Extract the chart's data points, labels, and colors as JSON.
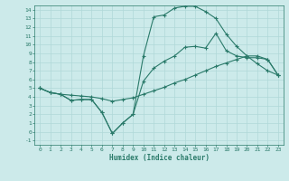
{
  "xlabel": "Humidex (Indice chaleur)",
  "bg_color": "#cceaea",
  "grid_color": "#b0d8d8",
  "line_color": "#2a7a6a",
  "xlim": [
    -0.5,
    23.5
  ],
  "ylim": [
    -1.5,
    14.5
  ],
  "xticks": [
    0,
    1,
    2,
    3,
    4,
    5,
    6,
    7,
    8,
    9,
    10,
    11,
    12,
    13,
    14,
    15,
    16,
    17,
    18,
    19,
    20,
    21,
    22,
    23
  ],
  "yticks": [
    -1,
    0,
    1,
    2,
    3,
    4,
    5,
    6,
    7,
    8,
    9,
    10,
    11,
    12,
    13,
    14
  ],
  "line1_x": [
    0,
    1,
    2,
    3,
    4,
    5,
    6,
    7,
    8,
    9,
    10,
    11,
    12,
    13,
    14,
    15,
    16,
    17,
    18,
    19,
    20,
    21,
    22,
    23
  ],
  "line1_y": [
    5.0,
    4.5,
    4.3,
    3.6,
    3.7,
    3.7,
    2.2,
    -0.2,
    1.0,
    2.0,
    8.7,
    13.2,
    13.4,
    14.2,
    14.4,
    14.4,
    13.8,
    13.0,
    11.2,
    9.8,
    8.7,
    8.7,
    8.3,
    6.5
  ],
  "line2_x": [
    0,
    1,
    2,
    3,
    4,
    5,
    6,
    7,
    8,
    9,
    10,
    11,
    12,
    13,
    14,
    15,
    16,
    17,
    18,
    19,
    20,
    21,
    22,
    23
  ],
  "line2_y": [
    5.0,
    4.5,
    4.3,
    3.6,
    3.7,
    3.7,
    2.2,
    -0.2,
    1.0,
    2.0,
    5.8,
    7.3,
    8.1,
    8.7,
    9.7,
    9.8,
    9.6,
    11.3,
    9.3,
    8.7,
    8.5,
    8.5,
    8.3,
    6.5
  ],
  "line3_x": [
    0,
    1,
    2,
    3,
    4,
    5,
    6,
    7,
    8,
    9,
    10,
    11,
    12,
    13,
    14,
    15,
    16,
    17,
    18,
    19,
    20,
    21,
    22,
    23
  ],
  "line3_y": [
    5.0,
    4.5,
    4.3,
    4.2,
    4.1,
    4.0,
    3.8,
    3.5,
    3.7,
    3.9,
    4.3,
    4.7,
    5.1,
    5.6,
    6.0,
    6.5,
    7.0,
    7.5,
    7.9,
    8.3,
    8.7,
    7.8,
    7.0,
    6.5
  ]
}
